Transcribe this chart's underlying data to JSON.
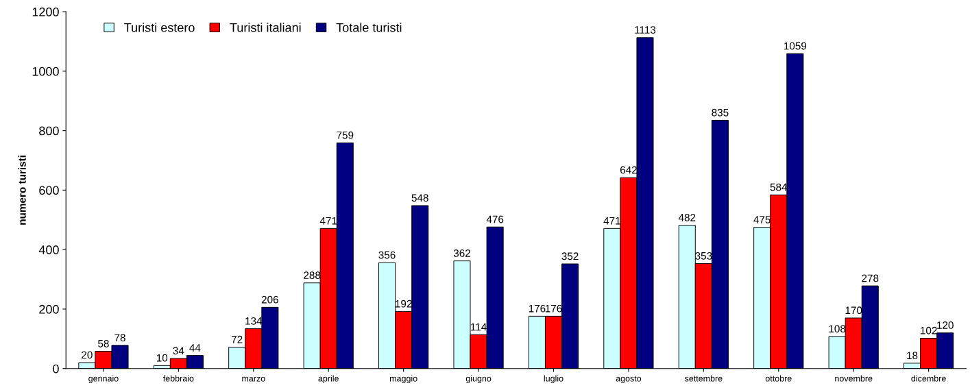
{
  "chart_data": {
    "type": "bar",
    "ylabel": "numero turisti",
    "categories": [
      "gennaio",
      "febbraio",
      "marzo",
      "aprile",
      "maggio",
      "giugno",
      "luglio",
      "agosto",
      "settembre",
      "ottobre",
      "novembre",
      "dicembre"
    ],
    "series": [
      {
        "name": "Turisti estero",
        "color": "#ccffff",
        "values": [
          20,
          10,
          72,
          288,
          356,
          362,
          176,
          471,
          482,
          475,
          108,
          18
        ]
      },
      {
        "name": "Turisti italiani",
        "color": "#ff0000",
        "values": [
          58,
          34,
          134,
          471,
          192,
          114,
          176,
          642,
          353,
          584,
          170,
          102
        ]
      },
      {
        "name": "Totale turisti",
        "color": "#000080",
        "values": [
          78,
          44,
          206,
          759,
          548,
          476,
          352,
          1113,
          835,
          1059,
          278,
          120
        ]
      }
    ],
    "ylim": [
      0,
      1200
    ],
    "yticks": [
      0,
      200,
      400,
      600,
      800,
      1000,
      1200
    ],
    "grid": false,
    "legend": "top left",
    "data_labels": true
  }
}
